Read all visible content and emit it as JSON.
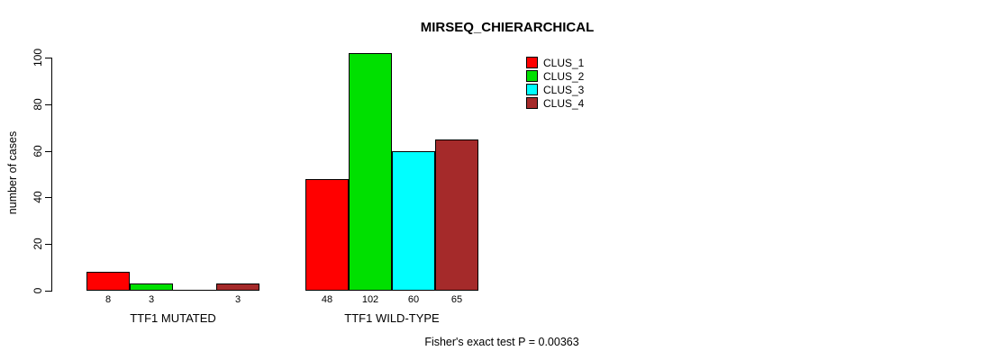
{
  "title": "MIRSEQ_CHIERARCHICAL",
  "footer": "Fisher's exact test P = 0.00363",
  "chart_data": {
    "type": "bar",
    "title": "MIRSEQ_CHIERARCHICAL",
    "xlabel": "",
    "ylabel": "number of cases",
    "ylim": [
      0,
      100
    ],
    "yticks": [
      0,
      20,
      40,
      60,
      80,
      100
    ],
    "grid": false,
    "legend_position": "top-right",
    "categories": [
      "TTF1 MUTATED",
      "TTF1 WILD-TYPE"
    ],
    "series": [
      {
        "name": "CLUS_1",
        "color": "#ff0000",
        "values": [
          8,
          48
        ]
      },
      {
        "name": "CLUS_2",
        "color": "#00e000",
        "values": [
          3,
          102
        ]
      },
      {
        "name": "CLUS_3",
        "color": "#00ffff",
        "values": [
          0,
          60
        ]
      },
      {
        "name": "CLUS_4",
        "color": "#a52a2a",
        "values": [
          3,
          65
        ]
      }
    ],
    "bar_value_labels": [
      [
        "8",
        "3",
        "",
        "3"
      ],
      [
        "48",
        "102",
        "60",
        "65"
      ]
    ],
    "annotation": "Fisher's exact test P = 0.00363"
  }
}
